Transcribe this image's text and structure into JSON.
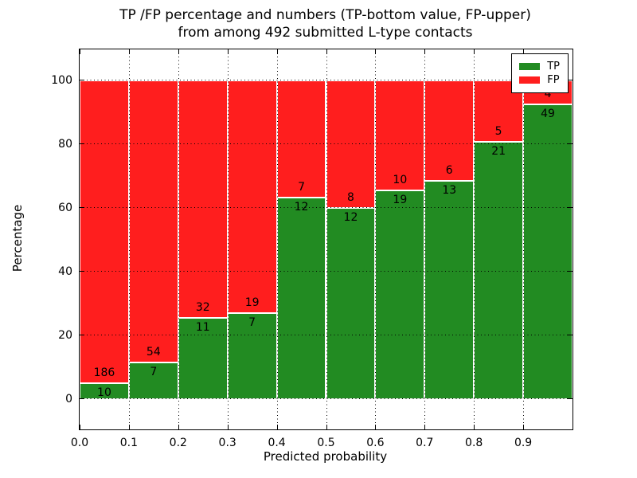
{
  "figure": {
    "title_line1": "TP /FP percentage and numbers (TP-bottom value, FP-upper)",
    "title_line2": "from among 492 submitted L-type contacts",
    "xlabel": "Predicted probability",
    "ylabel": "Percentage"
  },
  "legend": {
    "position": "upper right",
    "items": [
      {
        "label": "TP",
        "color": "#228b22"
      },
      {
        "label": "FP",
        "color": "#ff1e1e"
      }
    ]
  },
  "chart_data": {
    "type": "bar",
    "stacked": true,
    "normalized": "percent-stacked (TP+FP = 100% per bin)",
    "title": "TP /FP percentage and numbers (TP-bottom value, FP-upper) from among 492 submitted L-type contacts",
    "xlabel": "Predicted probability",
    "ylabel": "Percentage",
    "total_submitted_contacts": 492,
    "bin_edges": [
      0.0,
      0.1,
      0.2,
      0.3,
      0.4,
      0.5,
      0.6,
      0.7,
      0.8,
      0.9,
      1.0
    ],
    "xtick_labels": [
      "0.0",
      "0.1",
      "0.2",
      "0.3",
      "0.4",
      "0.5",
      "0.6",
      "0.7",
      "0.8",
      "0.9"
    ],
    "ytick_values": [
      0,
      20,
      40,
      60,
      80,
      100
    ],
    "xlim": [
      0.0,
      1.0
    ],
    "ylim": [
      -9.5,
      109.75
    ],
    "grid": "dotted, both axes, drawn over bars",
    "legend_position": "upper right",
    "bar_edge_color": "#ffffff",
    "series": [
      {
        "name": "TP",
        "color": "#228b22",
        "values": [
          10,
          7,
          11,
          7,
          12,
          12,
          19,
          13,
          21,
          49
        ]
      },
      {
        "name": "FP",
        "color": "#ff1e1e",
        "values": [
          186,
          54,
          32,
          19,
          7,
          8,
          10,
          6,
          5,
          4
        ]
      }
    ],
    "tp_percent_per_bin": [
      5.1,
      11.48,
      25.58,
      26.92,
      63.16,
      60.0,
      65.52,
      68.42,
      80.77,
      92.45
    ]
  }
}
